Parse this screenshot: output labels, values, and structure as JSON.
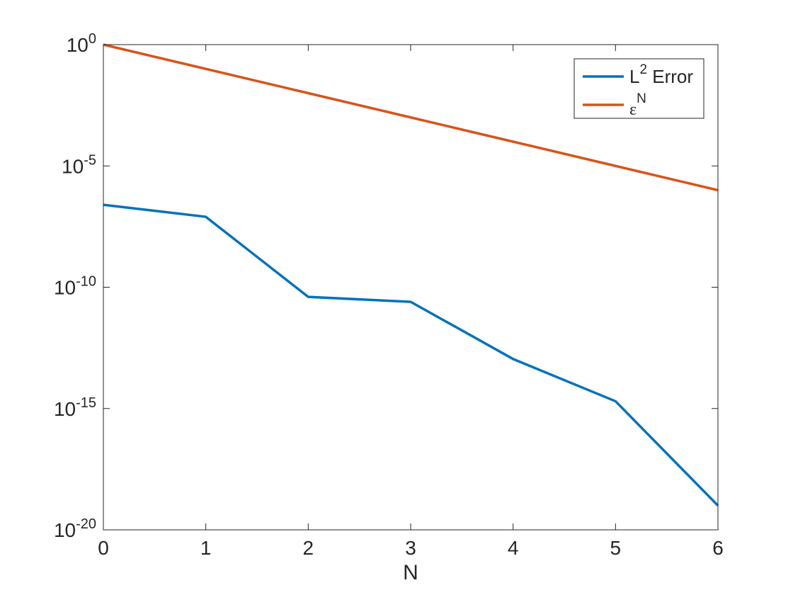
{
  "chart_data": {
    "type": "line",
    "xlabel": "N",
    "ylabel": "",
    "title": "",
    "xlim": [
      0,
      6
    ],
    "ylim_log10": [
      -20,
      0
    ],
    "yscale": "log",
    "x_ticks": [
      0,
      1,
      2,
      3,
      4,
      5,
      6
    ],
    "y_ticks": [
      {
        "base": "10",
        "exp": "0",
        "log10": 0
      },
      {
        "base": "10",
        "exp": "-5",
        "log10": -5
      },
      {
        "base": "10",
        "exp": "-10",
        "log10": -10
      },
      {
        "base": "10",
        "exp": "-15",
        "log10": -15
      },
      {
        "base": "10",
        "exp": "-20",
        "log10": -20
      }
    ],
    "grid": false,
    "legend_position": "top-right",
    "x": [
      0,
      1,
      2,
      3,
      4,
      5,
      6
    ],
    "series": [
      {
        "name_base": "L",
        "name_sup": "2",
        "name_rest": " Error",
        "color": "#0072BD",
        "values": [
          2.5e-07,
          8e-08,
          4e-11,
          2.5e-11,
          1.1e-13,
          2e-15,
          1e-19
        ]
      },
      {
        "name_base": "ε",
        "name_sup": "N",
        "name_rest": "",
        "color": "#D95319",
        "values": [
          1,
          0.1,
          0.01,
          0.001,
          0.0001,
          1e-05,
          1e-06
        ]
      }
    ]
  }
}
